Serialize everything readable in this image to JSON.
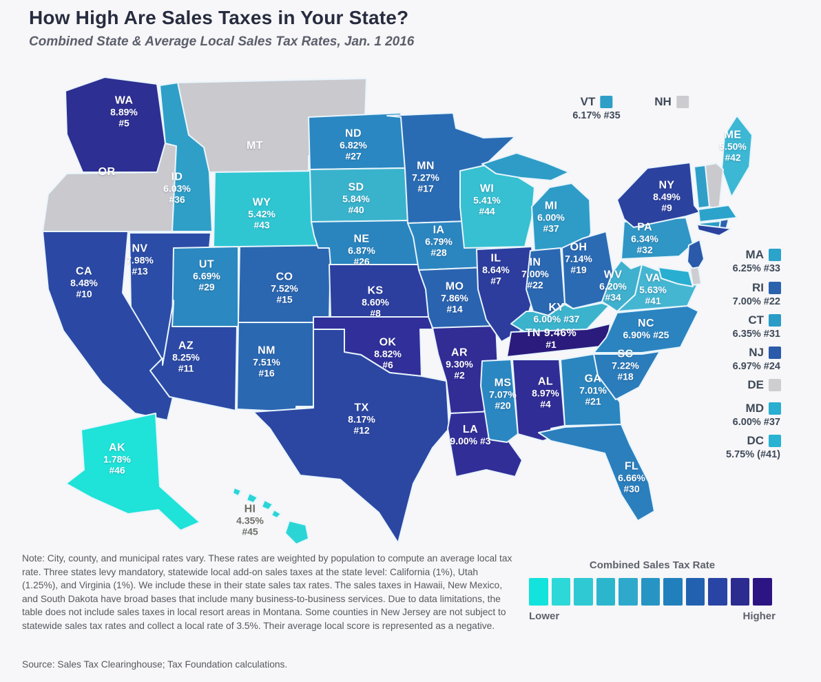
{
  "title": "How High Are Sales Taxes in Your State?",
  "subtitle": "Combined State & Average Local Sales Tax Rates, Jan. 1 2016",
  "colors": {
    "background": "#f7f6f8",
    "state_border": "#e9f5fc",
    "no_tax_gray": "#c9c9ce",
    "map_label_text": "#ffffff",
    "legend_text": "#3e4a59",
    "note_text": "#55595f"
  },
  "states": [
    {
      "abbr": "WA",
      "rate": "8.89%",
      "rank": "#5",
      "lines": [
        "WA",
        "8.89%",
        "#5"
      ],
      "fill": "#2e2f92"
    },
    {
      "abbr": "OR",
      "rate": "",
      "rank": "",
      "lines": [
        "OR"
      ],
      "fill": "#c9c9ce"
    },
    {
      "abbr": "MT",
      "rate": "",
      "rank": "",
      "lines": [
        "MT"
      ],
      "fill": "#c9c9ce"
    },
    {
      "abbr": "ID",
      "rate": "6.03%",
      "rank": "#36",
      "lines": [
        "ID",
        "6.03%",
        "#36"
      ],
      "fill": "#2f9fc8"
    },
    {
      "abbr": "WY",
      "rate": "5.42%",
      "rank": "#43",
      "lines": [
        "WY",
        "5.42%",
        "#43"
      ],
      "fill": "#2fc6d2"
    },
    {
      "abbr": "NV",
      "rate": "7.98%",
      "rank": "#13",
      "lines": [
        "NV",
        "7.98%",
        "#13"
      ],
      "fill": "#2c4da7"
    },
    {
      "abbr": "UT",
      "rate": "6.69%",
      "rank": "#29",
      "lines": [
        "UT",
        "6.69%",
        "#29"
      ],
      "fill": "#2b88c0"
    },
    {
      "abbr": "CA",
      "rate": "8.48%",
      "rank": "#10",
      "lines": [
        "CA",
        "8.48%",
        "#10"
      ],
      "fill": "#2b49a4"
    },
    {
      "abbr": "AZ",
      "rate": "8.25%",
      "rank": "#11",
      "lines": [
        "AZ",
        "8.25%",
        "#11"
      ],
      "fill": "#2c4aa5"
    },
    {
      "abbr": "NM",
      "rate": "7.51%",
      "rank": "#16",
      "lines": [
        "NM",
        "7.51%",
        "#16"
      ],
      "fill": "#2b68b2"
    },
    {
      "abbr": "CO",
      "rate": "7.52%",
      "rank": "#15",
      "lines": [
        "CO",
        "7.52%",
        "#15"
      ],
      "fill": "#2b66b1"
    },
    {
      "abbr": "ND",
      "rate": "6.82%",
      "rank": "#27",
      "lines": [
        "ND",
        "6.82%",
        "#27"
      ],
      "fill": "#2a87c1"
    },
    {
      "abbr": "SD",
      "rate": "5.84%",
      "rank": "#40",
      "lines": [
        "SD",
        "5.84%",
        "#40"
      ],
      "fill": "#39b3cc"
    },
    {
      "abbr": "NE",
      "rate": "6.87%",
      "rank": "#26",
      "lines": [
        "NE",
        "6.87%",
        "#26"
      ],
      "fill": "#2a85bf"
    },
    {
      "abbr": "KS",
      "rate": "8.60%",
      "rank": "#8",
      "lines": [
        "KS",
        "8.60%",
        "#8"
      ],
      "fill": "#2c3f9f"
    },
    {
      "abbr": "OK",
      "rate": "8.82%",
      "rank": "#6",
      "lines": [
        "OK",
        "8.82%",
        "#6"
      ],
      "fill": "#31309a"
    },
    {
      "abbr": "TX",
      "rate": "8.17%",
      "rank": "#12",
      "lines": [
        "TX",
        "8.17%",
        "#12"
      ],
      "fill": "#2c47a2"
    },
    {
      "abbr": "MN",
      "rate": "7.27%",
      "rank": "#17",
      "lines": [
        "MN",
        "7.27%",
        "#17"
      ],
      "fill": "#2a6cb4"
    },
    {
      "abbr": "IA",
      "rate": "6.79%",
      "rank": "#28",
      "lines": [
        "IA",
        "6.79%",
        "#28"
      ],
      "fill": "#2b86c0"
    },
    {
      "abbr": "MO",
      "rate": "7.86%",
      "rank": "#14",
      "lines": [
        "MO",
        "7.86%",
        "#14"
      ],
      "fill": "#2a64b0"
    },
    {
      "abbr": "AR",
      "rate": "9.30%",
      "rank": "#2",
      "lines": [
        "AR",
        "9.30%",
        "#2"
      ],
      "fill": "#322c95"
    },
    {
      "abbr": "LA",
      "rate": "9.00%",
      "rank": "#3",
      "lines": [
        "LA",
        "9.00% #3"
      ],
      "fill": "#322e98"
    },
    {
      "abbr": "WI",
      "rate": "5.41%",
      "rank": "#44",
      "lines": [
        "WI",
        "5.41%",
        "#44"
      ],
      "fill": "#36c0d1"
    },
    {
      "abbr": "IL",
      "rate": "8.64%",
      "rank": "#7",
      "lines": [
        "IL",
        "8.64%",
        "#7"
      ],
      "fill": "#2c3d9e"
    },
    {
      "abbr": "MS",
      "rate": "7.07%",
      "rank": "#20",
      "lines": [
        "MS",
        "7.07%",
        "#20"
      ],
      "fill": "#2b87c1"
    },
    {
      "abbr": "MI",
      "rate": "6.00%",
      "rank": "#37",
      "lines": [
        "MI",
        "6.00%",
        "#37"
      ],
      "fill": "#2e9cc7"
    },
    {
      "abbr": "IN",
      "rate": "7.00%",
      "rank": "#22",
      "lines": [
        "IN",
        "7.00%",
        "#22"
      ],
      "fill": "#2b68b2"
    },
    {
      "abbr": "KY",
      "rate": "6.00%",
      "rank": "#37",
      "lines": [
        "KY",
        "6.00% #37"
      ],
      "fill": "#3cb3cc"
    },
    {
      "abbr": "TN",
      "rate": "9.46%",
      "rank": "#1",
      "lines": [
        "TN 9.46%",
        "#1"
      ],
      "fill": "#2b1b7d"
    },
    {
      "abbr": "AL",
      "rate": "8.97%",
      "rank": "#4",
      "lines": [
        "AL",
        "8.97%",
        "#4"
      ],
      "fill": "#312d96"
    },
    {
      "abbr": "OH",
      "rate": "7.14%",
      "rank": "#19",
      "lines": [
        "OH",
        "7.14%",
        "#19"
      ],
      "fill": "#2b6bb4"
    },
    {
      "abbr": "GA",
      "rate": "7.01%",
      "rank": "#21",
      "lines": [
        "GA",
        "7.01%",
        "#21"
      ],
      "fill": "#2b85bf"
    },
    {
      "abbr": "WV",
      "rate": "6.20%",
      "rank": "#34",
      "lines": [
        "WV",
        "6.20%",
        "#34"
      ],
      "fill": "#3fb0cd"
    },
    {
      "abbr": "SC",
      "rate": "7.22%",
      "rank": "#18",
      "lines": [
        "SC",
        "7.22%",
        "#18"
      ],
      "fill": "#2b7cbb"
    },
    {
      "abbr": "NC",
      "rate": "6.90%",
      "rank": "#25",
      "lines": [
        "NC",
        "6.90% #25"
      ],
      "fill": "#2b84c0"
    },
    {
      "abbr": "VA",
      "rate": "5.63%",
      "rank": "#41",
      "lines": [
        "VA",
        "5.63%",
        "#41"
      ],
      "fill": "#45b6d2"
    },
    {
      "abbr": "FL",
      "rate": "6.66%",
      "rank": "#30",
      "lines": [
        "FL",
        "6.66%",
        "#30"
      ],
      "fill": "#2b7fbd"
    },
    {
      "abbr": "PA",
      "rate": "6.34%",
      "rank": "#32",
      "lines": [
        "PA",
        "6.34%",
        "#32"
      ],
      "fill": "#3096c5"
    },
    {
      "abbr": "NY",
      "rate": "8.49%",
      "rank": "#9",
      "lines": [
        "NY",
        "8.49%",
        "#9"
      ],
      "fill": "#2c429f"
    },
    {
      "abbr": "ME",
      "rate": "5.50%",
      "rank": "#42",
      "lines": [
        "ME",
        "5.50%",
        "#42"
      ],
      "fill": "#3cb8d4"
    },
    {
      "abbr": "AK",
      "rate": "1.78%",
      "rank": "#46",
      "lines": [
        "AK",
        "1.78%",
        "#46"
      ],
      "fill": "#1fe2d8"
    },
    {
      "abbr": "HI",
      "rate": "4.35%",
      "rank": "#45",
      "lines": [
        "HI",
        "4.35%",
        "#45"
      ],
      "fill": "#2bd5d6",
      "text_color": "#6b6f67"
    },
    {
      "abbr": "VT",
      "rate": "6.17%",
      "rank": "#35",
      "lines": [],
      "fill": "#2f9fc8"
    },
    {
      "abbr": "NH",
      "rate": "",
      "rank": "",
      "lines": [],
      "fill": "#c9c9ce"
    },
    {
      "abbr": "MA",
      "rate": "6.25%",
      "rank": "#33",
      "lines": [],
      "fill": "#2ba3ca"
    },
    {
      "abbr": "CT",
      "rate": "6.35%",
      "rank": "#31",
      "lines": [],
      "fill": "#2b9cc7"
    },
    {
      "abbr": "RI",
      "rate": "7.00%",
      "rank": "#22",
      "lines": [],
      "fill": "#2a62ae"
    },
    {
      "abbr": "NJ",
      "rate": "6.97%",
      "rank": "#24",
      "lines": [],
      "fill": "#2a5aa9"
    },
    {
      "abbr": "DE",
      "rate": "",
      "rank": "",
      "lines": [],
      "fill": "#cdcdd2"
    },
    {
      "abbr": "MD",
      "rate": "6.00%",
      "rank": "#37",
      "lines": [],
      "fill": "#28aed0"
    },
    {
      "abbr": "LI",
      "rate": "",
      "rank": "",
      "lines": [],
      "fill": "#2c429f"
    }
  ],
  "top_legend": [
    {
      "abbr": "VT",
      "rate_rank": "6.17% #35",
      "swatch": "#2f9fc8"
    },
    {
      "abbr": "NH",
      "rate_rank": "",
      "swatch": "#ccccd0"
    }
  ],
  "coastal_legend": [
    {
      "abbr": "MA",
      "rate_rank": "6.25% #33",
      "swatch": "#2ba3ca"
    },
    {
      "abbr": "RI",
      "rate_rank": "7.00% #22",
      "swatch": "#2a62ae"
    },
    {
      "abbr": "CT",
      "rate_rank": "6.35% #31",
      "swatch": "#2b9cc7"
    },
    {
      "abbr": "NJ",
      "rate_rank": "6.97% #24",
      "swatch": "#2a5aa9"
    },
    {
      "abbr": "DE",
      "rate_rank": "",
      "swatch": "#cdcdd2"
    },
    {
      "abbr": "MD",
      "rate_rank": "6.00% #37",
      "swatch": "#28aed0"
    },
    {
      "abbr": "DC",
      "rate_rank": "5.75% (#41)",
      "swatch": "#29b2d2"
    }
  ],
  "note": "Note: City, county, and municipal rates vary. These rates are weighted by population to compute an average local tax rate. Three states levy mandatory, statewide local add-on sales taxes at the state level: California (1%), Utah (1.25%), and Virginia (1%). We include these in their state sales tax rates. The sales taxes in Hawaii, New Mexico, and South Dakota have broad bases that include many business-to-business services. Due to data limitations, the table does not include sales taxes in local resort areas in Montana. Some counties in New Jersey are not subject to statewide sales tax rates and collect a local rate of 3.5%. Their average local score is represented as a negative.",
  "source": "Source: Sales Tax Clearinghouse; Tax Foundation calculations.",
  "color_scale": {
    "title": "Combined Sales Tax Rate",
    "lower_label": "Lower",
    "higher_label": "Higher",
    "swatches": [
      "#12e3dc",
      "#2dd8d8",
      "#2fc9d4",
      "#2bb6cd",
      "#2fa9cb",
      "#2795c4",
      "#2180bc",
      "#2161b0",
      "#2844a4",
      "#2b2b90",
      "#2c1583"
    ]
  }
}
